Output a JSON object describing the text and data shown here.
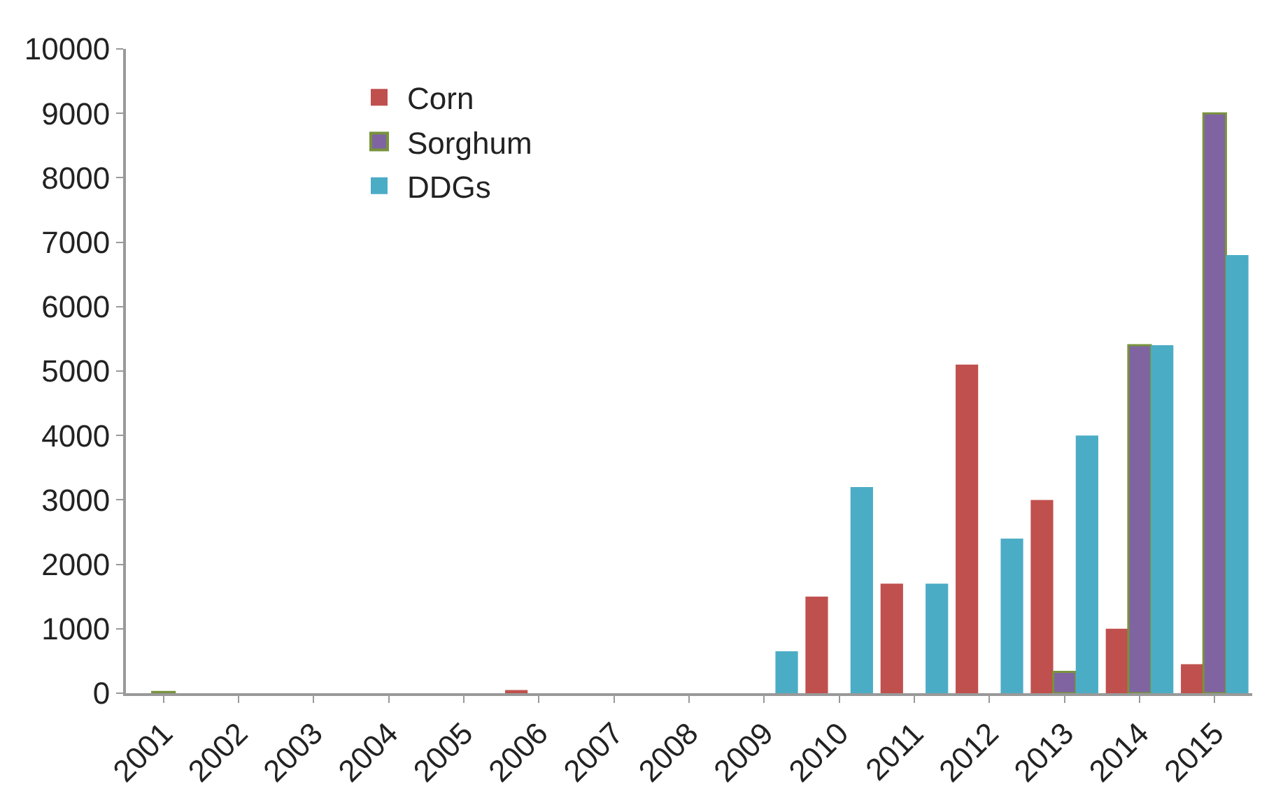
{
  "chart_data": {
    "type": "bar",
    "categories": [
      "2001",
      "2002",
      "2003",
      "2004",
      "2005",
      "2006",
      "2007",
      "2008",
      "2009",
      "2010",
      "2011",
      "2012",
      "2013",
      "2014",
      "2015"
    ],
    "series": [
      {
        "name": "Corn",
        "color": "#c0504d",
        "values": [
          null,
          null,
          null,
          null,
          null,
          50,
          null,
          null,
          null,
          1500,
          1700,
          5100,
          3000,
          1000,
          450
        ]
      },
      {
        "name": "Sorghum",
        "color": "#8064a2",
        "values": [
          20,
          null,
          null,
          null,
          null,
          null,
          null,
          null,
          null,
          null,
          null,
          null,
          330,
          5400,
          9000
        ]
      },
      {
        "name": "DDGs",
        "color": "#4bacc6",
        "values": [
          null,
          null,
          null,
          null,
          null,
          null,
          null,
          null,
          650,
          3200,
          1700,
          2400,
          4000,
          5400,
          6800
        ]
      }
    ],
    "ylim": [
      0,
      10000
    ],
    "yticks": [
      0,
      1000,
      2000,
      3000,
      4000,
      5000,
      6000,
      7000,
      8000,
      9000,
      10000
    ],
    "legend": "top left"
  }
}
